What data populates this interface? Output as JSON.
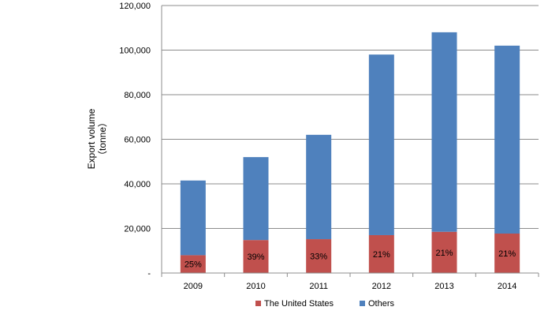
{
  "chart_data": {
    "type": "bar",
    "stacked": true,
    "categories": [
      "2009",
      "2010",
      "2011",
      "2012",
      "2013",
      "2014"
    ],
    "series": [
      {
        "name": "The United States",
        "color": "#c0504d",
        "values": [
          8000,
          14800,
          15200,
          17000,
          18500,
          17700
        ],
        "data_labels": [
          "25%",
          "39%",
          "33%",
          "21%",
          "21%",
          "21%"
        ]
      },
      {
        "name": "Others",
        "color": "#4f81bd",
        "values": [
          33500,
          37200,
          46800,
          81000,
          89500,
          84300
        ]
      }
    ],
    "ylabel_line1": "Export volume",
    "ylabel_line2": "（tonne）",
    "ylim": [
      0,
      120000
    ],
    "yticks": [
      0,
      20000,
      40000,
      60000,
      80000,
      100000,
      120000
    ],
    "ytick_labels": [
      "-",
      "20,000",
      "40,000",
      "60,000",
      "80,000",
      "100,000",
      "120,000"
    ],
    "grid": true,
    "legend_position": "bottom"
  }
}
